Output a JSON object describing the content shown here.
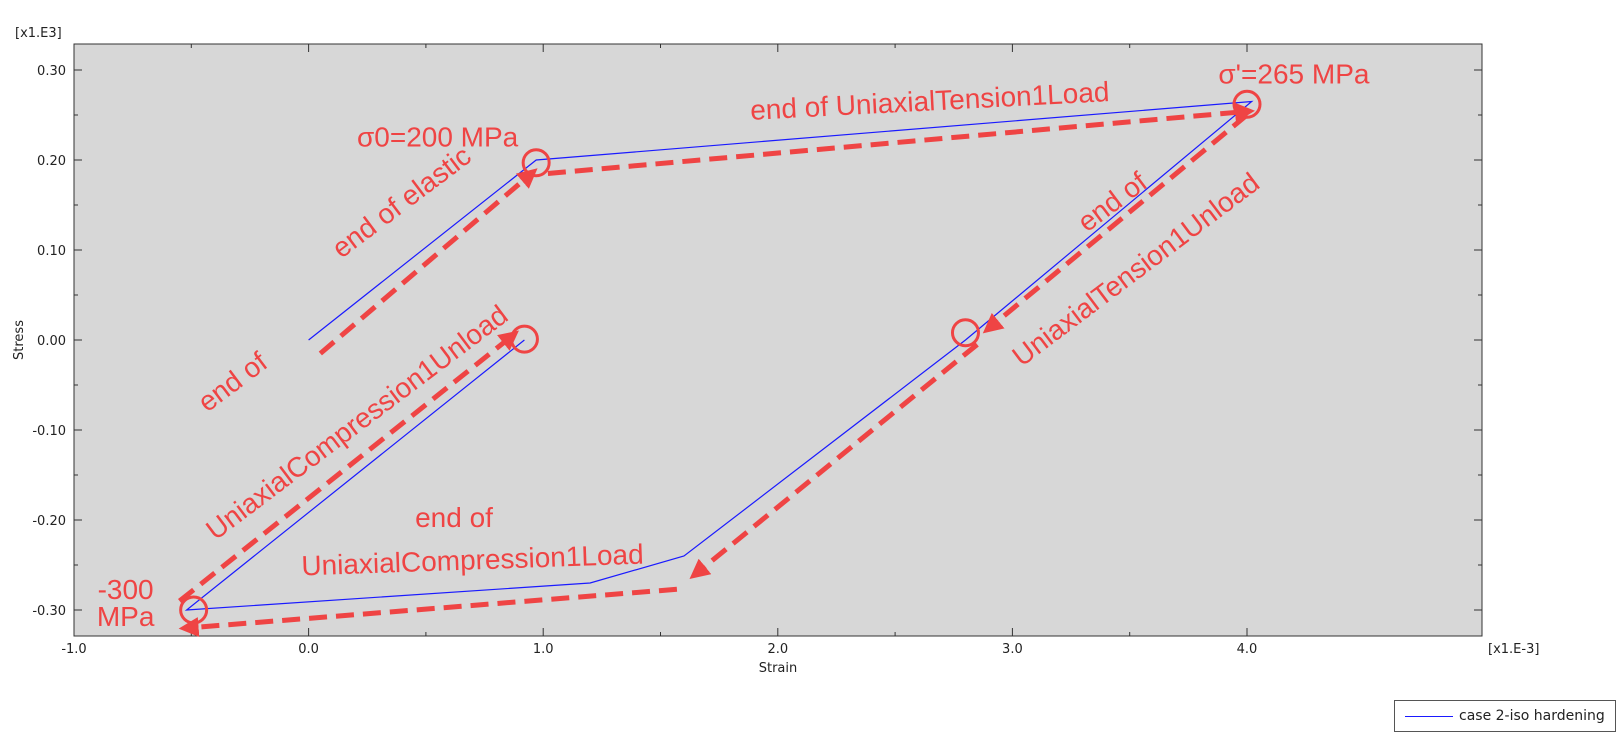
{
  "chart_data": {
    "type": "line",
    "xlabel": "Strain",
    "ylabel": "Stress",
    "x_multiplier_label": "[x1.E-3]",
    "y_multiplier_label": "[x1.E3]",
    "xlim": [
      -1.0,
      4.0
    ],
    "ylim": [
      -0.32,
      0.33
    ],
    "x_ticks": [
      "-1.0",
      "0.0",
      "1.0",
      "2.0",
      "3.0",
      "4.0"
    ],
    "y_ticks": [
      "-0.30",
      "-0.20",
      "-0.10",
      "0.00",
      "0.10",
      "0.20",
      "0.30"
    ],
    "grid": false,
    "plot_background": "#d7d7d7",
    "series": [
      {
        "name": "case 2-iso hardening",
        "color": "#1a1aff",
        "x": [
          0.0,
          0.97,
          4.02,
          2.8,
          1.6,
          1.2,
          -0.52,
          0.92
        ],
        "y": [
          0.0,
          0.2,
          0.265,
          0.0,
          -0.24,
          -0.27,
          -0.3,
          0.0
        ]
      }
    ],
    "legend": {
      "position": "bottom-right"
    },
    "annotations": [
      {
        "text": "σ0=200 MPa",
        "x": 0.55,
        "y": 0.215
      },
      {
        "text": "end of elastic",
        "x": 0.42,
        "y": 0.145,
        "rotation": -37
      },
      {
        "text": "end of UniaxialTension1Load",
        "x": 2.65,
        "y": 0.255,
        "rotation": -3
      },
      {
        "text": "σ'=265 MPa",
        "x": 4.2,
        "y": 0.285
      },
      {
        "text": "end of",
        "x": 3.45,
        "y": 0.145,
        "rotation": -37
      },
      {
        "text": "UniaxialTension1Unload",
        "x": 3.55,
        "y": 0.07,
        "rotation": -37
      },
      {
        "text": "end of",
        "x": -0.3,
        "y": -0.055,
        "rotation": -37
      },
      {
        "text": "UniaxialCompression1Unload",
        "x": 0.23,
        "y": -0.1,
        "rotation": -37
      },
      {
        "text": "-300",
        "x": -0.78,
        "y": -0.288
      },
      {
        "text": "MPa",
        "x": -0.78,
        "y": -0.318
      },
      {
        "text": "end of",
        "x": 0.62,
        "y": -0.208
      },
      {
        "text": "UniaxialCompression1Load",
        "x": 0.7,
        "y": -0.255,
        "rotation": -2
      }
    ],
    "annotation_color": "#ef4444",
    "markers": [
      {
        "x": 0.97,
        "y": 0.197
      },
      {
        "x": 4.0,
        "y": 0.262
      },
      {
        "x": 2.8,
        "y": 0.008
      },
      {
        "x": 0.92,
        "y": 0.001
      },
      {
        "x": -0.49,
        "y": -0.3
      }
    ],
    "arrows": [
      {
        "x": [
          0.05,
          0.95
        ],
        "y": [
          -0.015,
          0.185
        ]
      },
      {
        "x": [
          1.02,
          4.0
        ],
        "y": [
          0.185,
          0.254
        ]
      },
      {
        "x": [
          4.0,
          2.9
        ],
        "y": [
          0.25,
          0.013
        ]
      },
      {
        "x": [
          2.85,
          1.65
        ],
        "y": [
          -0.005,
          -0.26
        ]
      },
      {
        "x": [
          1.57,
          -0.52
        ],
        "y": [
          -0.277,
          -0.32
        ]
      },
      {
        "x": [
          -0.55,
          0.87
        ],
        "y": [
          -0.29,
          0.005
        ]
      }
    ]
  }
}
